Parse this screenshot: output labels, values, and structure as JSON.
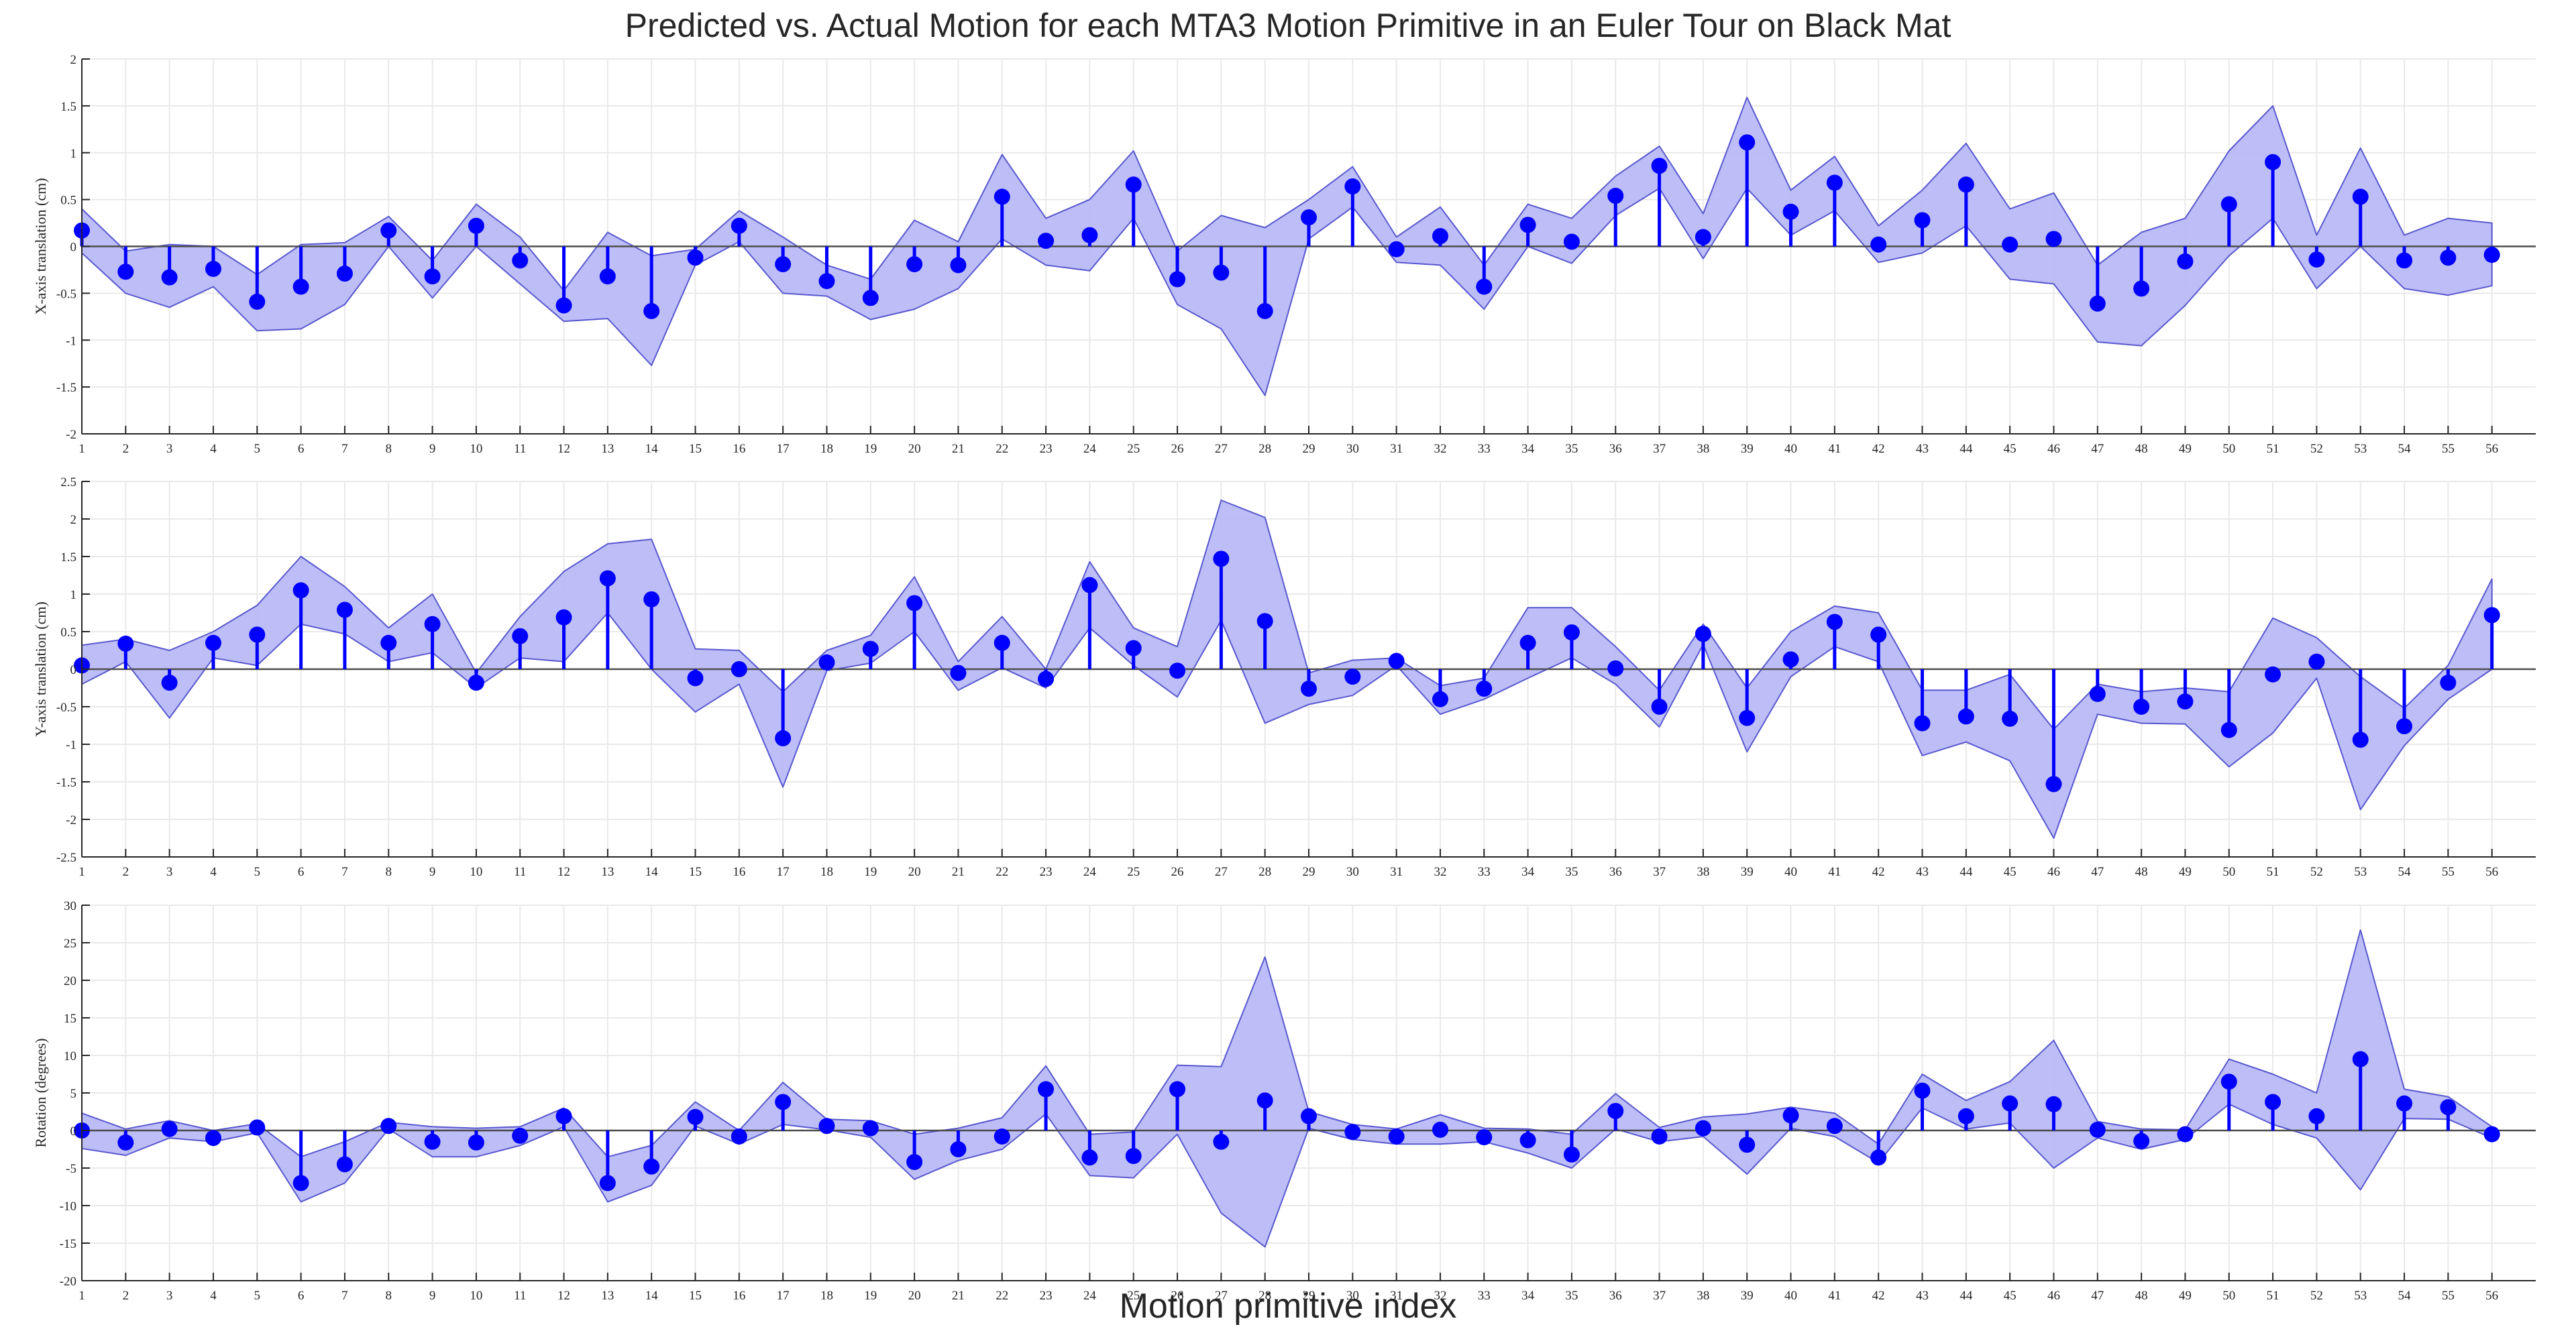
{
  "title": "Predicted vs. Actual Motion for each MTA3 Motion Primitive in an Euler Tour on Black Mat",
  "xlabel": "Motion primitive index",
  "colors": {
    "marker": "#0000ff",
    "band_fill": "#b9b9f7",
    "band_edge": "#5858d0",
    "grid": "#e9e9e9",
    "axis": "#262626"
  },
  "chart_data": [
    {
      "type": "line",
      "ylabel": "X-axis translation (cm)",
      "ylim": [
        -2,
        2
      ],
      "yticks": [
        -2,
        -1.5,
        -1,
        -0.5,
        0,
        0.5,
        1,
        1.5,
        2
      ],
      "xlim": [
        1,
        57
      ],
      "grid": true,
      "x": [
        1,
        2,
        3,
        4,
        5,
        6,
        7,
        8,
        9,
        10,
        11,
        12,
        13,
        14,
        15,
        16,
        17,
        18,
        19,
        20,
        21,
        22,
        23,
        24,
        25,
        26,
        27,
        28,
        29,
        30,
        31,
        32,
        33,
        34,
        35,
        36,
        37,
        38,
        39,
        40,
        41,
        42,
        43,
        44,
        45,
        46,
        47,
        48,
        49,
        50,
        51,
        52,
        53,
        54,
        55,
        56
      ],
      "actual": [
        0.17,
        -0.27,
        -0.33,
        -0.24,
        -0.59,
        -0.43,
        -0.29,
        0.17,
        -0.32,
        0.22,
        -0.15,
        -0.63,
        -0.32,
        -0.69,
        -0.12,
        0.22,
        -0.19,
        -0.37,
        -0.55,
        -0.19,
        -0.2,
        0.53,
        0.06,
        0.12,
        0.66,
        -0.35,
        -0.28,
        -0.69,
        0.31,
        0.64,
        -0.03,
        0.11,
        -0.43,
        0.23,
        0.05,
        0.54,
        0.86,
        0.1,
        1.11,
        0.37,
        0.68,
        0.02,
        0.28,
        0.66,
        0.02,
        0.08,
        -0.61,
        -0.45,
        -0.16,
        0.45,
        0.9,
        -0.14,
        0.53,
        -0.15,
        -0.12,
        -0.09
      ],
      "band_upper": [
        0.4,
        -0.05,
        0.02,
        0.0,
        -0.3,
        0.02,
        0.04,
        0.32,
        -0.15,
        0.45,
        0.1,
        -0.47,
        0.15,
        -0.1,
        -0.03,
        0.38,
        0.1,
        -0.2,
        -0.35,
        0.28,
        0.05,
        0.98,
        0.3,
        0.5,
        1.02,
        -0.05,
        0.33,
        0.2,
        0.5,
        0.85,
        0.1,
        0.42,
        -0.2,
        0.45,
        0.3,
        0.75,
        1.07,
        0.35,
        1.59,
        0.6,
        0.96,
        0.22,
        0.6,
        1.1,
        0.4,
        0.57,
        -0.2,
        0.15,
        0.3,
        1.02,
        1.5,
        0.12,
        1.05,
        0.12,
        0.3,
        0.25
      ],
      "band_lower": [
        -0.07,
        -0.5,
        -0.65,
        -0.43,
        -0.9,
        -0.88,
        -0.62,
        0.0,
        -0.55,
        0.0,
        -0.4,
        -0.8,
        -0.77,
        -1.27,
        -0.2,
        0.05,
        -0.5,
        -0.53,
        -0.78,
        -0.67,
        -0.45,
        0.08,
        -0.2,
        -0.26,
        0.3,
        -0.62,
        -0.88,
        -1.59,
        0.08,
        0.42,
        -0.17,
        -0.2,
        -0.67,
        0.0,
        -0.18,
        0.33,
        0.62,
        -0.13,
        0.62,
        0.12,
        0.38,
        -0.17,
        -0.07,
        0.22,
        -0.35,
        -0.4,
        -1.02,
        -1.06,
        -0.63,
        -0.1,
        0.3,
        -0.45,
        0.0,
        -0.45,
        -0.52,
        -0.42
      ]
    },
    {
      "type": "line",
      "ylabel": "Y-axis translation (cm)",
      "ylim": [
        -2.5,
        2.5
      ],
      "yticks": [
        -2.5,
        -2,
        -1.5,
        -1,
        -0.5,
        0,
        0.5,
        1,
        1.5,
        2,
        2.5
      ],
      "xlim": [
        1,
        57
      ],
      "grid": true,
      "x": [
        1,
        2,
        3,
        4,
        5,
        6,
        7,
        8,
        9,
        10,
        11,
        12,
        13,
        14,
        15,
        16,
        17,
        18,
        19,
        20,
        21,
        22,
        23,
        24,
        25,
        26,
        27,
        28,
        29,
        30,
        31,
        32,
        33,
        34,
        35,
        36,
        37,
        38,
        39,
        40,
        41,
        42,
        43,
        44,
        45,
        46,
        47,
        48,
        49,
        50,
        51,
        52,
        53,
        54,
        55,
        56
      ],
      "actual": [
        0.05,
        0.34,
        -0.18,
        0.35,
        0.46,
        1.05,
        0.79,
        0.35,
        0.6,
        -0.18,
        0.44,
        0.69,
        1.21,
        0.93,
        -0.12,
        0.0,
        -0.92,
        0.09,
        0.27,
        0.88,
        -0.05,
        0.35,
        -0.13,
        1.12,
        0.28,
        -0.02,
        1.47,
        0.64,
        -0.26,
        -0.1,
        0.11,
        -0.4,
        -0.26,
        0.35,
        0.49,
        0.01,
        -0.5,
        0.47,
        -0.65,
        0.13,
        0.63,
        0.46,
        -0.72,
        -0.63,
        -0.66,
        -1.53,
        -0.33,
        -0.5,
        -0.43,
        -0.81,
        -0.07,
        0.1,
        -0.94,
        -0.76,
        -0.18,
        0.72
      ],
      "band_upper": [
        0.32,
        0.4,
        0.25,
        0.5,
        0.85,
        1.5,
        1.1,
        0.55,
        1.0,
        -0.05,
        0.7,
        1.3,
        1.67,
        1.73,
        0.27,
        0.25,
        -0.3,
        0.25,
        0.45,
        1.23,
        0.1,
        0.7,
        0.0,
        1.43,
        0.55,
        0.3,
        2.25,
        2.02,
        -0.05,
        0.12,
        0.15,
        -0.22,
        -0.12,
        0.82,
        0.82,
        0.3,
        -0.28,
        0.6,
        -0.25,
        0.5,
        0.84,
        0.75,
        -0.28,
        -0.28,
        -0.07,
        -0.8,
        -0.2,
        -0.3,
        -0.25,
        -0.3,
        0.68,
        0.42,
        -0.1,
        -0.52,
        0.05,
        1.2
      ],
      "band_lower": [
        -0.2,
        0.1,
        -0.65,
        0.15,
        0.05,
        0.6,
        0.47,
        0.1,
        0.22,
        -0.25,
        0.15,
        0.1,
        0.75,
        0.0,
        -0.57,
        -0.2,
        -1.57,
        -0.02,
        0.08,
        0.5,
        -0.28,
        0.02,
        -0.25,
        0.55,
        0.05,
        -0.37,
        0.65,
        -0.72,
        -0.47,
        -0.35,
        0.05,
        -0.6,
        -0.4,
        -0.12,
        0.15,
        -0.2,
        -0.77,
        0.33,
        -1.1,
        -0.1,
        0.3,
        0.1,
        -1.15,
        -0.97,
        -1.22,
        -2.25,
        -0.6,
        -0.72,
        -0.73,
        -1.3,
        -0.85,
        -0.12,
        -1.87,
        -1.02,
        -0.4,
        0.0
      ]
    },
    {
      "type": "line",
      "ylabel": "Rotation (degrees)",
      "ylim": [
        -20,
        30
      ],
      "yticks": [
        -20,
        -15,
        -10,
        -5,
        0,
        5,
        10,
        15,
        20,
        25,
        30
      ],
      "xlim": [
        1,
        57
      ],
      "grid": true,
      "x": [
        1,
        2,
        3,
        4,
        5,
        6,
        7,
        8,
        9,
        10,
        11,
        12,
        13,
        14,
        15,
        16,
        17,
        18,
        19,
        20,
        21,
        22,
        23,
        24,
        25,
        26,
        27,
        28,
        29,
        30,
        31,
        32,
        33,
        34,
        35,
        36,
        37,
        38,
        39,
        40,
        41,
        42,
        43,
        44,
        45,
        46,
        47,
        48,
        49,
        50,
        51,
        52,
        53,
        54,
        55,
        56
      ],
      "actual": [
        0.0,
        -1.6,
        0.2,
        -1.0,
        0.4,
        -7.0,
        -4.5,
        0.6,
        -1.5,
        -1.6,
        -0.7,
        1.9,
        -7.0,
        -4.8,
        1.8,
        -0.8,
        3.8,
        0.6,
        0.3,
        -4.2,
        -2.5,
        -0.8,
        5.5,
        -3.6,
        -3.4,
        5.5,
        -1.5,
        4.0,
        1.9,
        -0.2,
        -0.8,
        0.1,
        -0.9,
        -1.3,
        -3.2,
        2.6,
        -0.8,
        0.3,
        -1.9,
        2.0,
        0.6,
        -3.6,
        5.3,
        1.9,
        3.6,
        3.5,
        0.1,
        -1.4,
        -0.5,
        6.5,
        3.8,
        1.9,
        9.5,
        3.6,
        3.1,
        -0.5
      ],
      "band_upper": [
        2.3,
        0.2,
        1.3,
        0.0,
        0.9,
        -3.5,
        -1.5,
        1.1,
        0.5,
        0.3,
        0.5,
        3.0,
        -3.5,
        -2.0,
        3.8,
        0.0,
        6.4,
        1.5,
        1.3,
        -0.5,
        0.3,
        1.7,
        8.6,
        -0.5,
        -0.2,
        8.7,
        8.5,
        23.1,
        2.5,
        0.8,
        0.2,
        2.1,
        0.3,
        0.2,
        -0.5,
        4.9,
        0.4,
        1.8,
        2.2,
        3.1,
        2.3,
        -1.8,
        7.5,
        4.0,
        6.5,
        12.0,
        1.2,
        0.2,
        0.1,
        9.5,
        7.5,
        5.0,
        26.7,
        5.5,
        4.5,
        0.5
      ],
      "band_lower": [
        -2.4,
        -3.3,
        -1.0,
        -1.5,
        -0.3,
        -9.5,
        -7.0,
        0.2,
        -3.5,
        -3.5,
        -2.0,
        0.5,
        -9.5,
        -7.3,
        0.6,
        -1.8,
        0.8,
        0.1,
        -0.9,
        -6.5,
        -4.0,
        -2.5,
        2.2,
        -6.0,
        -6.3,
        -0.5,
        -11.0,
        -15.5,
        0.3,
        -1.2,
        -1.8,
        -1.8,
        -1.5,
        -3.0,
        -5.0,
        0.2,
        -1.5,
        -0.8,
        -5.8,
        0.3,
        -0.8,
        -4.3,
        3.0,
        0.2,
        1.0,
        -5.0,
        -1.0,
        -2.5,
        -1.2,
        3.5,
        0.8,
        -1.0,
        -7.9,
        1.6,
        1.5,
        -1.0
      ]
    }
  ]
}
